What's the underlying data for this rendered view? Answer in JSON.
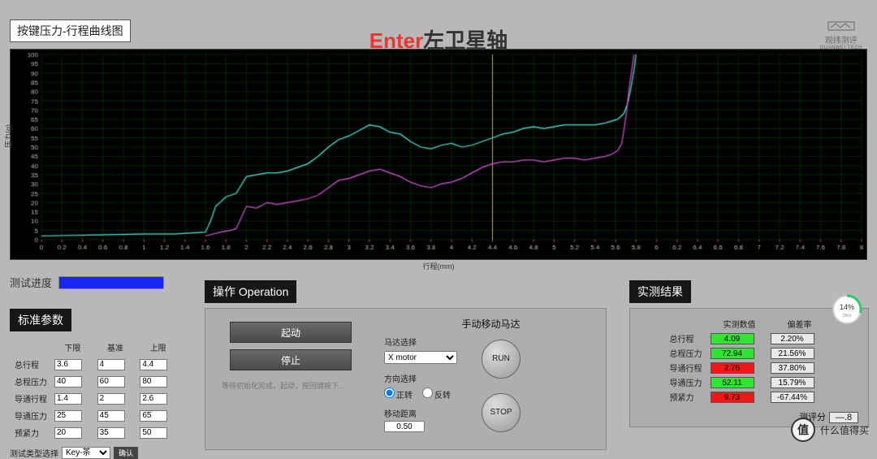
{
  "header_box": "按键压力-行程曲线图",
  "title": {
    "red": "Enter",
    "dark": "左卫星轴"
  },
  "logo": {
    "brand": "观纬测评",
    "sub": "GUANWEI TECH"
  },
  "chart": {
    "type": "line",
    "background_color": "#000000",
    "grid_color": "#0a4a0a",
    "grid_color_minor": "#082a08",
    "x_label": "行程(mm)",
    "y_label": "压力(g)",
    "xlim": [
      0,
      8
    ],
    "x_tick_step": 0.2,
    "ylim": [
      0,
      100
    ],
    "y_tick_step": 5,
    "vertical_marker": {
      "x": 4.4,
      "color": "#c8b060"
    },
    "tick_color": "#cc4040",
    "series": [
      {
        "name": "press",
        "color": "#3df0e0",
        "width": 1.2,
        "points": [
          [
            0,
            2
          ],
          [
            0.5,
            2.5
          ],
          [
            1.0,
            3
          ],
          [
            1.3,
            3
          ],
          [
            1.6,
            4
          ],
          [
            1.65,
            10
          ],
          [
            1.7,
            18
          ],
          [
            1.8,
            23
          ],
          [
            1.9,
            25
          ],
          [
            2.0,
            34
          ],
          [
            2.1,
            35
          ],
          [
            2.2,
            36
          ],
          [
            2.3,
            36
          ],
          [
            2.4,
            37
          ],
          [
            2.5,
            39
          ],
          [
            2.6,
            41
          ],
          [
            2.7,
            45
          ],
          [
            2.8,
            50
          ],
          [
            2.9,
            54
          ],
          [
            3.0,
            56
          ],
          [
            3.1,
            59
          ],
          [
            3.2,
            62
          ],
          [
            3.3,
            61
          ],
          [
            3.4,
            58
          ],
          [
            3.5,
            57
          ],
          [
            3.6,
            53
          ],
          [
            3.7,
            50
          ],
          [
            3.8,
            49
          ],
          [
            3.9,
            51
          ],
          [
            4.0,
            52
          ],
          [
            4.1,
            50
          ],
          [
            4.2,
            51
          ],
          [
            4.3,
            53
          ],
          [
            4.4,
            55
          ],
          [
            4.5,
            57
          ],
          [
            4.6,
            58
          ],
          [
            4.7,
            60
          ],
          [
            4.8,
            61
          ],
          [
            4.9,
            60
          ],
          [
            5.0,
            61
          ],
          [
            5.1,
            62
          ],
          [
            5.2,
            62
          ],
          [
            5.3,
            62
          ],
          [
            5.4,
            62
          ],
          [
            5.5,
            63
          ],
          [
            5.56,
            64
          ],
          [
            5.62,
            65
          ],
          [
            5.68,
            68
          ],
          [
            5.72,
            74
          ],
          [
            5.75,
            82
          ],
          [
            5.78,
            92
          ],
          [
            5.8,
            100
          ]
        ]
      },
      {
        "name": "return",
        "color": "#e050e0",
        "width": 1.2,
        "points": [
          [
            1.6,
            2
          ],
          [
            1.75,
            4
          ],
          [
            1.85,
            5
          ],
          [
            1.9,
            6
          ],
          [
            2.0,
            18
          ],
          [
            2.1,
            17
          ],
          [
            2.2,
            20
          ],
          [
            2.3,
            19
          ],
          [
            2.4,
            20
          ],
          [
            2.5,
            21
          ],
          [
            2.6,
            22
          ],
          [
            2.7,
            24
          ],
          [
            2.8,
            28
          ],
          [
            2.9,
            32
          ],
          [
            3.0,
            33
          ],
          [
            3.1,
            35
          ],
          [
            3.2,
            37
          ],
          [
            3.3,
            38
          ],
          [
            3.4,
            36
          ],
          [
            3.5,
            34
          ],
          [
            3.6,
            31
          ],
          [
            3.7,
            29
          ],
          [
            3.8,
            28
          ],
          [
            3.9,
            30
          ],
          [
            4.0,
            31
          ],
          [
            4.1,
            33
          ],
          [
            4.2,
            36
          ],
          [
            4.3,
            39
          ],
          [
            4.4,
            41
          ],
          [
            4.5,
            42
          ],
          [
            4.6,
            42
          ],
          [
            4.7,
            43
          ],
          [
            4.8,
            43
          ],
          [
            4.9,
            42
          ],
          [
            5.0,
            43
          ],
          [
            5.1,
            44
          ],
          [
            5.2,
            44
          ],
          [
            5.3,
            43
          ],
          [
            5.4,
            44
          ],
          [
            5.5,
            45
          ],
          [
            5.56,
            46
          ],
          [
            5.62,
            48
          ],
          [
            5.66,
            52
          ],
          [
            5.7,
            66
          ],
          [
            5.74,
            85
          ],
          [
            5.78,
            100
          ]
        ]
      }
    ]
  },
  "progress": {
    "label": "测试进度",
    "percent": 100
  },
  "std": {
    "label": "标准参数",
    "columns": [
      "下限",
      "基准",
      "上限"
    ],
    "rows": [
      {
        "name": "总行程",
        "low": "3.6",
        "base": "4",
        "high": "4.4"
      },
      {
        "name": "总程压力",
        "low": "40",
        "base": "60",
        "high": "80"
      },
      {
        "name": "导通行程",
        "low": "1.4",
        "base": "2",
        "high": "2.6"
      },
      {
        "name": "导通压力",
        "low": "25",
        "base": "45",
        "high": "65"
      },
      {
        "name": "预紧力",
        "low": "20",
        "base": "35",
        "high": "50"
      }
    ],
    "test_type": {
      "label": "测试类型选择",
      "selected": "Key-茶",
      "options": [
        "Key-茶"
      ],
      "confirm": "确认"
    }
  },
  "op": {
    "label": "操作 Operation",
    "start": "起动",
    "stop": "停止",
    "hint": "等待初始化完成，起动，按回键按下...",
    "manual_title": "手动移动马达",
    "motor_label": "马达选择",
    "motor_selected": "X motor",
    "motor_options": [
      "X motor"
    ],
    "dir_label": "方向选择",
    "fwd": "正转",
    "rev": "反转",
    "dist_label": "移动距离",
    "dist_val": "0.50",
    "run": "RUN",
    "stop_round": "STOP"
  },
  "res": {
    "label": "实测结果",
    "col1": "实测数值",
    "col2": "偏差率",
    "rows": [
      {
        "name": "总行程",
        "val": "4.09",
        "val_style": "cell-green",
        "dev": "2.20%",
        "dev_style": "cell-white"
      },
      {
        "name": "总程压力",
        "val": "72.94",
        "val_style": "cell-green",
        "dev": "21.56%",
        "dev_style": "cell-white"
      },
      {
        "name": "导通行程",
        "val": "2.76",
        "val_style": "cell-red",
        "dev": "37.80%",
        "dev_style": "cell-white"
      },
      {
        "name": "导通压力",
        "val": "52.11",
        "val_style": "cell-green",
        "dev": "15.79%",
        "dev_style": "cell-white"
      },
      {
        "name": "预紧力",
        "val": "9.73",
        "val_style": "cell-red",
        "dev": "-67.44%",
        "dev_style": "cell-white"
      }
    ],
    "score_label": "测评分",
    "score": "—.8"
  },
  "gauge": {
    "value": "14",
    "unit": "%",
    "sub": "OK/s",
    "ring_color": "#2dc96b"
  },
  "watermark": {
    "char": "值",
    "text": "什么值得买"
  }
}
